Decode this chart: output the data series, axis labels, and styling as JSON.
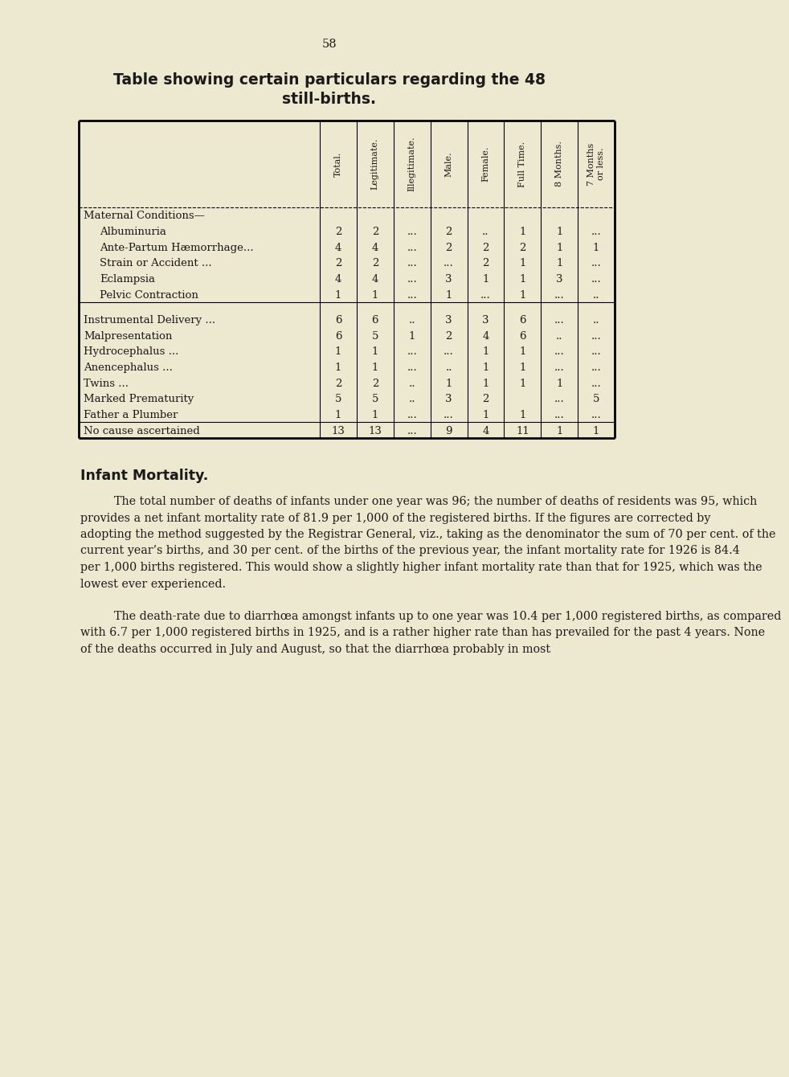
{
  "page_number": "58",
  "title_line1": "Table showing certain particulars regarding the 48",
  "title_line2": "still-births.",
  "bg_color": "#ede8d0",
  "text_color": "#1a1a1a",
  "col_headers": [
    "Total.",
    "Legitimate.",
    "Illegitimate.",
    "Male.",
    "Female.",
    "Full Time.",
    "8 Months.",
    "7 Months\nor less."
  ],
  "rows": [
    {
      "label": "Maternal Conditions—",
      "indent": 0,
      "values": [
        "",
        "",
        "",
        "",
        "",
        "",
        "",
        ""
      ]
    },
    {
      "label": "Albuminuria",
      "indent": 1,
      "values": [
        "2",
        "2",
        "...",
        "2",
        "..",
        "1",
        "1",
        "..."
      ]
    },
    {
      "label": "Ante-Partum Hæmorrhage...",
      "indent": 1,
      "values": [
        "4",
        "4",
        "...",
        "2",
        "2",
        "2",
        "1",
        "1"
      ]
    },
    {
      "label": "Strain or Accident ...",
      "indent": 1,
      "values": [
        "2",
        "2",
        "...",
        "...",
        "2",
        "1",
        "1",
        "..."
      ]
    },
    {
      "label": "Eclampsia",
      "indent": 1,
      "values": [
        "4",
        "4",
        "...",
        "3",
        "1",
        "1",
        "3",
        "..."
      ]
    },
    {
      "label": "Pelvic Contraction",
      "indent": 1,
      "values": [
        "1",
        "1",
        "...",
        "1",
        "...",
        "1",
        "...",
        ".."
      ]
    },
    {
      "label": "SEPARATOR",
      "indent": 0,
      "values": [
        "",
        "",
        "",
        "",
        "",
        "",
        "",
        ""
      ]
    },
    {
      "label": "Instrumental Delivery ...",
      "indent": 0,
      "values": [
        "6",
        "6",
        "..",
        "3",
        "3",
        "6",
        "...",
        ".."
      ]
    },
    {
      "label": "Malpresentation",
      "indent": 0,
      "values": [
        "6",
        "5",
        "1",
        "2",
        "4",
        "6",
        "..",
        "..."
      ]
    },
    {
      "label": "Hydrocephalus ...",
      "indent": 0,
      "values": [
        "1",
        "1",
        "...",
        "...",
        "1",
        "1",
        "...",
        "..."
      ]
    },
    {
      "label": "Anencephalus ...",
      "indent": 0,
      "values": [
        "1",
        "1",
        "...",
        "..",
        "1",
        "1",
        "...",
        "..."
      ]
    },
    {
      "label": "Twins ...",
      "indent": 0,
      "values": [
        "2",
        "2",
        "..",
        "1",
        "1",
        "1",
        "1",
        "..."
      ]
    },
    {
      "label": "Marked Prematurity",
      "indent": 0,
      "values": [
        "5",
        "5",
        "..",
        "3",
        "2",
        "",
        "...",
        "5"
      ]
    },
    {
      "label": "Father a Plumber",
      "indent": 0,
      "values": [
        "1",
        "1",
        "...",
        "...",
        "1",
        "1",
        "...",
        "..."
      ]
    },
    {
      "label": "No cause ascertained",
      "indent": 0,
      "values": [
        "13",
        "13",
        "...",
        "9",
        "4",
        "11",
        "1",
        "1"
      ]
    }
  ],
  "section_heading": "Infant Mortality.",
  "paragraph1": "The total number of deaths of infants under one year was 96; the number of deaths of residents was 95, which provides a net infant mortality rate of 81.9 per 1,000 of the registered births. If the figures are corrected by adopting the method suggested by the Registrar General, viz., taking as the denominator the sum of 70 per cent. of the current year’s births, and 30 per cent. of the births of the previous year, the infant mortality rate for 1926 is 84.4 per 1,000 births registered. This would show a slightly higher infant mortality rate than that for 1925, which was the lowest ever experienced.",
  "paragraph2": "The death-rate due to diarrhœa amongst infants up to one year was 10.4 per 1,000 registered births, as compared with 6.7 per 1,000 registered births in 1925, and is a rather higher rate than has prevailed for the past 4 years.   None of the deaths occurred in July and August, so that the diarrhœa probably in most"
}
